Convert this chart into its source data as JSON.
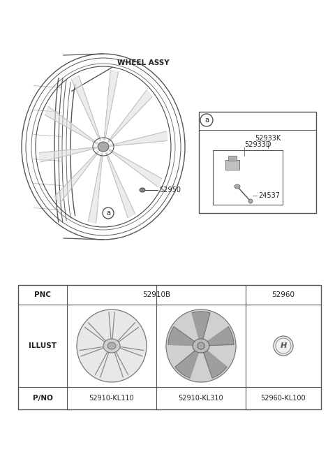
{
  "bg_color": "#ffffff",
  "wheel_assy_label": "WHEEL ASSY",
  "part_52950": "52950",
  "part_a_label": "a",
  "detail_a_label": "a",
  "part_52933K": "52933K",
  "part_52933D": "52933D",
  "part_24537": "24537",
  "line_color": "#444444",
  "text_color": "#222222",
  "table_border_color": "#555555",
  "table": {
    "pnc_label": "PNC",
    "pnc_52910B": "52910B",
    "pnc_52960": "52960",
    "illust_label": "ILLUST",
    "pno_label": "P/NO",
    "pno_1": "52910-KL110",
    "pno_2": "52910-KL310",
    "pno_3": "52960-KL100"
  }
}
